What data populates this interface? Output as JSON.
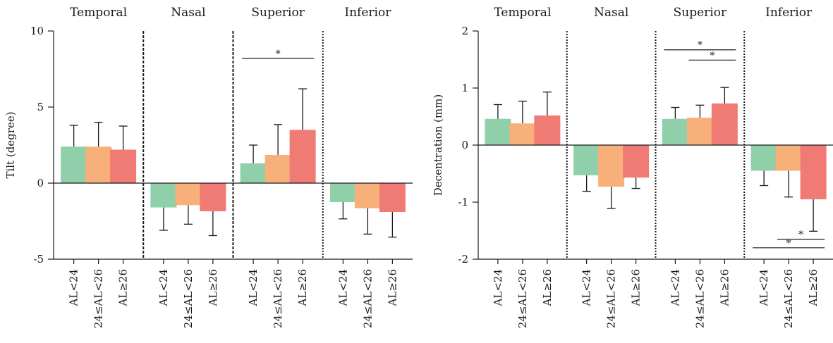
{
  "colors": {
    "AL<24": "#8fd0aa",
    "24≤AL<26": "#f8b07a",
    "AL≥26": "#f07b74",
    "axis": "#1a1a1a"
  },
  "chart_data": [
    {
      "type": "bar",
      "ylabel": "Tilt (degree)",
      "ylim": [
        -5,
        10
      ],
      "yticks": [
        -5,
        0,
        5,
        10
      ],
      "groups": [
        "Temporal",
        "Nasal",
        "Superior",
        "Inferior"
      ],
      "group_separators": [
        "none",
        "dashed",
        "dashed",
        "dotted"
      ],
      "categories": [
        "AL<24",
        "24≤AL<26",
        "AL≥26"
      ],
      "series": [
        {
          "group": "Temporal",
          "values": [
            2.4,
            2.4,
            2.2
          ],
          "errors": [
            1.4,
            1.6,
            1.55
          ]
        },
        {
          "group": "Nasal",
          "values": [
            -1.6,
            -1.45,
            -1.85
          ],
          "errors": [
            1.5,
            1.25,
            1.6
          ]
        },
        {
          "group": "Superior",
          "values": [
            1.3,
            1.85,
            3.5
          ],
          "errors": [
            1.2,
            2.0,
            2.7
          ]
        },
        {
          "group": "Inferior",
          "values": [
            -1.25,
            -1.65,
            -1.9
          ],
          "errors": [
            1.1,
            1.7,
            1.65
          ]
        }
      ],
      "significance": [
        {
          "group": "Superior",
          "from": 0,
          "to": 2,
          "y": 8.2,
          "label": "*"
        }
      ]
    },
    {
      "type": "bar",
      "ylabel": "Decentration (mm)",
      "ylim": [
        -2,
        2
      ],
      "yticks": [
        -2,
        -1,
        0,
        1,
        2
      ],
      "groups": [
        "Temporal",
        "Nasal",
        "Superior",
        "Inferior"
      ],
      "group_separators": [
        "none",
        "dotted",
        "dotted",
        "dotted"
      ],
      "categories": [
        "AL<24",
        "24≤AL<26",
        "AL≥26"
      ],
      "series": [
        {
          "group": "Temporal",
          "values": [
            0.46,
            0.38,
            0.52
          ],
          "errors": [
            0.25,
            0.39,
            0.41
          ]
        },
        {
          "group": "Nasal",
          "values": [
            -0.53,
            -0.73,
            -0.57
          ],
          "errors": [
            0.28,
            0.38,
            0.19
          ]
        },
        {
          "group": "Superior",
          "values": [
            0.46,
            0.48,
            0.73
          ],
          "errors": [
            0.2,
            0.22,
            0.28
          ]
        },
        {
          "group": "Inferior",
          "values": [
            -0.45,
            -0.45,
            -0.95
          ],
          "errors": [
            0.26,
            0.46,
            0.56
          ]
        }
      ],
      "significance": [
        {
          "group": "Superior",
          "from": 0,
          "to": 2,
          "y": 1.67,
          "label": "*"
        },
        {
          "group": "Superior",
          "from": 1,
          "to": 2,
          "y": 1.49,
          "label": "*"
        },
        {
          "group": "Inferior",
          "from": 1,
          "to": 2,
          "y": -1.65,
          "label": "*"
        },
        {
          "group": "Inferior",
          "from": 0,
          "to": 2,
          "y": -1.8,
          "label": "*"
        }
      ]
    }
  ]
}
